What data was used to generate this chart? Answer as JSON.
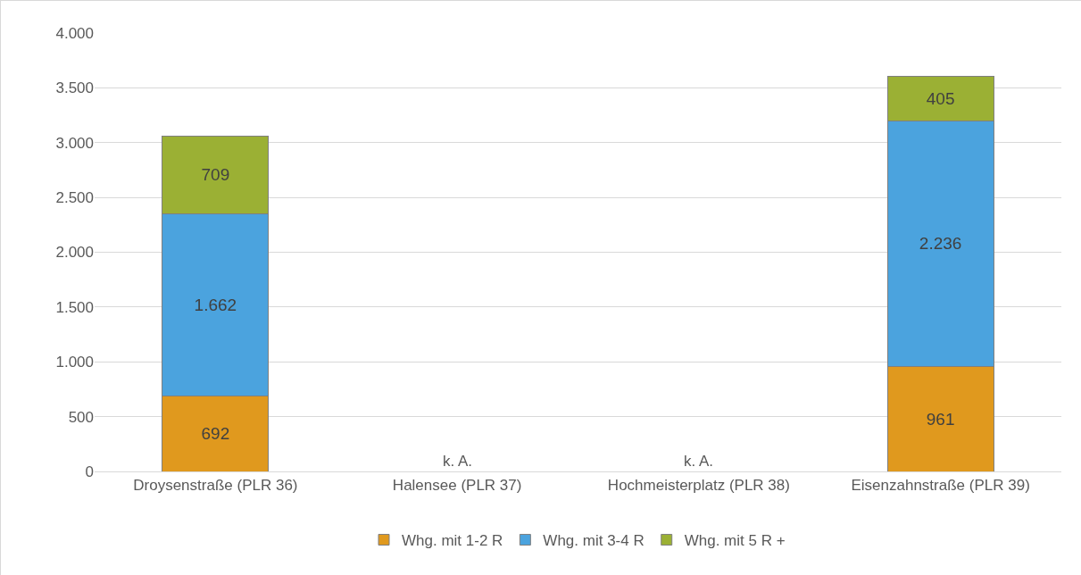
{
  "chart_data": {
    "type": "bar",
    "stacked": true,
    "categories": [
      "Droysenstraße (PLR 36)",
      "Halensee (PLR 37)",
      "Hochmeisterplatz (PLR 38)",
      "Eisenzahnstraße (PLR 39)"
    ],
    "series": [
      {
        "name": "Whg. mit 1-2 R",
        "color": "#e0991e",
        "values": [
          692,
          null,
          null,
          961
        ],
        "value_labels": [
          "692",
          null,
          null,
          "961"
        ]
      },
      {
        "name": "Whg. mit 3-4 R",
        "color": "#4ba3de",
        "values": [
          1662,
          null,
          null,
          2236
        ],
        "value_labels": [
          "1.662",
          null,
          null,
          "2.236"
        ]
      },
      {
        "name": "Whg. mit 5 R +",
        "color": "#9bb034",
        "values": [
          709,
          null,
          null,
          405
        ],
        "value_labels": [
          "709",
          null,
          null,
          "405"
        ]
      }
    ],
    "ylim": [
      0,
      4000
    ],
    "yticks": [
      0,
      {
        "value": 500,
        "label": "500"
      },
      {
        "value": 1000,
        "label": "1.000"
      },
      {
        "value": 1500,
        "label": "1.500"
      },
      {
        "value": 2000,
        "label": "2.000"
      },
      {
        "value": 2500,
        "label": "2.500"
      },
      {
        "value": 3000,
        "label": "3.000"
      },
      {
        "value": 3500,
        "label": "3.500"
      },
      {
        "value": 4000,
        "label": "4.000"
      }
    ],
    "annotations": [
      "k. A.",
      "k. A."
    ],
    "grid": "y",
    "legend": "bottom"
  }
}
